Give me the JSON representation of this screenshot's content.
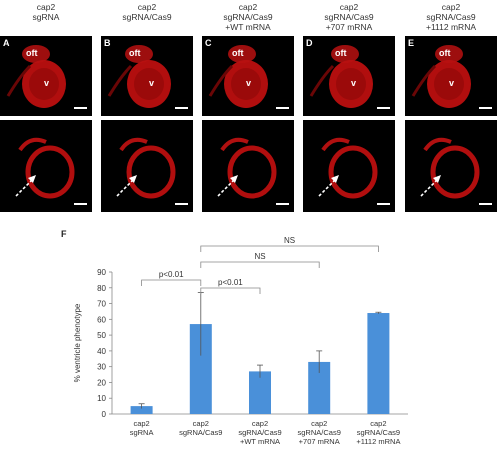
{
  "columns": [
    {
      "label": "cap2\nsgRNA",
      "panel": "A"
    },
    {
      "label": "cap2\nsgRNA/Cas9",
      "panel": "B"
    },
    {
      "label": "cap2\nsgRNA/Cas9\n+WT mRNA",
      "panel": "C"
    },
    {
      "label": "cap2\nsgRNA/Cas9\n+707 mRNA",
      "panel": "D"
    },
    {
      "label": "cap2\nsgRNA/Cas9\n+1112 mRNA",
      "panel": "E"
    }
  ],
  "tags": {
    "oft": "oft",
    "v": "v"
  },
  "chart_letter": "F",
  "chart_data": {
    "type": "bar",
    "categories": [
      "cap2\nsgRNA",
      "cap2\nsgRNA/Cas9",
      "cap2\nsgRNA/Cas9\n+WT mRNA",
      "cap2\nsgRNA/Cas9\n+707 mRNA",
      "cap2\nsgRNA/Cas9\n+1112 mRNA"
    ],
    "values": [
      5,
      57,
      27,
      33,
      64
    ],
    "errors": [
      1.5,
      20,
      4,
      7,
      0.5
    ],
    "ylabel": "% ventricle phenotype",
    "ylim": [
      0,
      90
    ],
    "yticks": [
      0,
      10,
      20,
      30,
      40,
      50,
      60,
      70,
      80,
      90
    ],
    "bar_color": "#4a90d9",
    "annotations": [
      {
        "text": "p<0.01",
        "from": 0,
        "to": 1
      },
      {
        "text": "p<0.01",
        "from": 1,
        "to": 2
      },
      {
        "text": "NS",
        "from": 1,
        "to": 3
      },
      {
        "text": "NS",
        "from": 1,
        "to": 4
      }
    ]
  }
}
